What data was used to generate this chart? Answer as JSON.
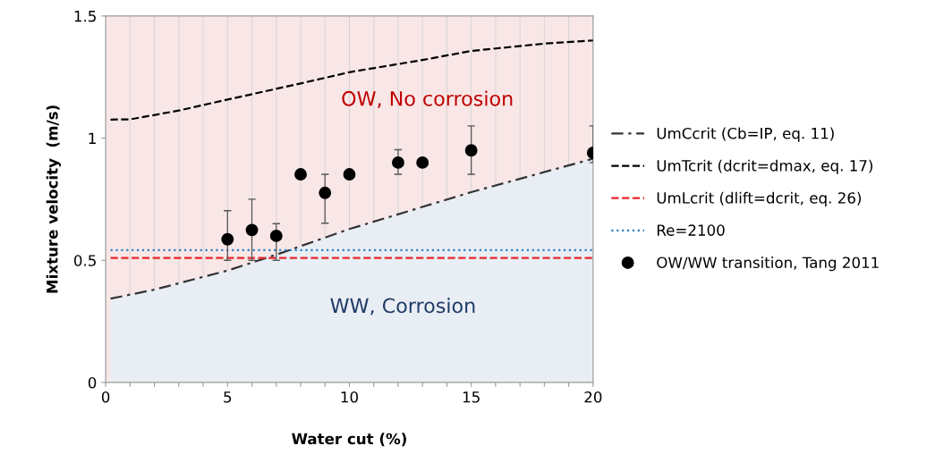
{
  "chart_data": {
    "type": "line",
    "xlabel": "Water cut (%)",
    "ylabel": "Mixture velocity  (m/s)",
    "xlim": [
      0,
      20
    ],
    "ylim": [
      0,
      1.5
    ],
    "xticks": [
      0,
      {
        "value": 1,
        "label": null
      },
      {
        "value": 2,
        "label": null
      },
      {
        "value": 3,
        "label": null
      },
      {
        "value": 4,
        "label": null
      },
      5,
      {
        "value": 6,
        "label": null
      },
      {
        "value": 7,
        "label": null
      },
      {
        "value": 8,
        "label": null
      },
      {
        "value": 9,
        "label": null
      },
      10,
      {
        "value": 11,
        "label": null
      },
      {
        "value": 12,
        "label": null
      },
      {
        "value": 13,
        "label": null
      },
      {
        "value": 14,
        "label": null
      },
      15,
      {
        "value": 16,
        "label": null
      },
      {
        "value": 17,
        "label": null
      },
      {
        "value": 18,
        "label": null
      },
      {
        "value": 19,
        "label": null
      },
      20
    ],
    "yticks": [
      0,
      0.5,
      1,
      1.5
    ],
    "grid": "x",
    "legend": "right",
    "bands": [
      {
        "axis": "y",
        "from": 0,
        "to": 1.5,
        "label": null,
        "color": "#f9e7e7"
      }
    ],
    "series": [
      {
        "name": "UmCcrit (Cb=IP, eq. 11)",
        "line_style": "dashdot",
        "color": "#333333",
        "x": [
          0.2,
          2,
          5,
          7,
          10,
          15,
          20
        ],
        "values": [
          0.343,
          0.38,
          0.458,
          0.523,
          0.628,
          0.779,
          0.916
        ],
        "lower": [
          0,
          0,
          0,
          0,
          0,
          0,
          0
        ],
        "upper": [
          0.343,
          0.38,
          0.458,
          0.523,
          0.628,
          0.779,
          0.916
        ]
      },
      {
        "name": "UmTcrit (dcrit=dmax, eq. 17)",
        "line_style": "dashed",
        "color": "#000000",
        "x": [
          0.2,
          1,
          3,
          5,
          8,
          10,
          13,
          15,
          18,
          20
        ],
        "values": [
          1.076,
          1.077,
          1.113,
          1.158,
          1.224,
          1.27,
          1.32,
          1.357,
          1.387,
          1.4
        ]
      },
      {
        "name": "UmLcrit (dlift=dcrit, eq. 26)",
        "line_style": "dashed",
        "color": "#e8262b",
        "x": [
          0.2,
          20
        ],
        "values": [
          0.51,
          0.51
        ]
      },
      {
        "name": "Re=2100",
        "line_style": "dotted",
        "color": "#2e7fc1",
        "x": [
          0.2,
          20
        ],
        "values": [
          0.542,
          0.542
        ]
      },
      {
        "name": "OW/WW transition, Tang 2011",
        "type": "scatter",
        "marker": "circle",
        "color": "#000000",
        "x": [
          5,
          6,
          7,
          8,
          9,
          10,
          12,
          13,
          15,
          20
        ],
        "values": [
          0.586,
          0.624,
          0.6,
          0.852,
          0.776,
          0.852,
          0.9,
          0.9,
          0.95,
          0.94
        ],
        "errors": [
          [
            0.5,
            0.703
          ],
          [
            0.5,
            0.75
          ],
          [
            0.5,
            0.65
          ],
          null,
          [
            0.652,
            0.852
          ],
          null,
          [
            0.852,
            0.953
          ],
          null,
          [
            0.852,
            1.05
          ],
          [
            0.9,
            1.05
          ]
        ]
      }
    ],
    "annotations": [
      "OW, No corrosion",
      "WW, Corrosion"
    ]
  }
}
